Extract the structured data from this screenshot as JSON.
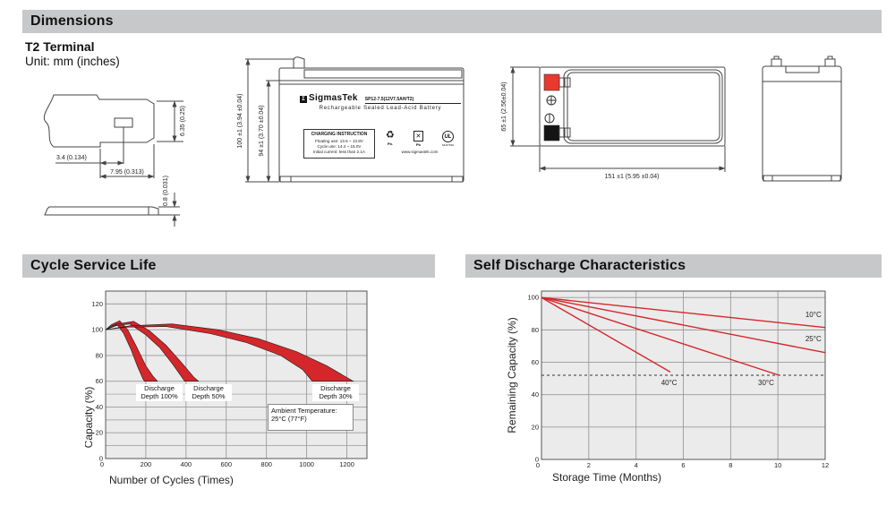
{
  "sections": {
    "dimensions": {
      "title": "Dimensions",
      "subtitle": "T2 Terminal",
      "unit_note": "Unit: mm (inches)"
    },
    "cycle_life": {
      "title": "Cycle Service Life"
    },
    "self_discharge": {
      "title": "Self Discharge Characteristics"
    }
  },
  "colors": {
    "header_bar": "#c7c8c9",
    "chart_plot_bg": "#ebebeb",
    "grid": "#9a9a9a",
    "plot_border": "#555555",
    "chart_red": "#d4272b",
    "terminal_red": "#e8392e",
    "terminal_black": "#141414",
    "drawing_stroke": "#444444"
  },
  "terminal_drawing": {
    "labels": {
      "hole_offset": "3.4 (0.134)",
      "tab_width": "7.95 (0.313)",
      "tab_height": "6.35 (0.25)",
      "thickness": "0.8 (0.031)"
    }
  },
  "front_view": {
    "dim_outer": "100 ±1 (3.94 ±0.04)",
    "dim_inner": "94 ±1 (3.70 ±0.04)",
    "label": {
      "logo_glyph": "Σ",
      "brand": "SigmasTek",
      "model": "SP12-7.5(12V7.5AH/T2)",
      "subtitle": "Rechargeable Sealed Lead-Acid Battery",
      "charging_title": "CHARGING INSTRUCTION",
      "charging_lines": [
        "Floating use: 13.5 ~ 13.8V",
        "Cycle use: 14.4 ~ 15.0V",
        "Initial current: less than 2.1A"
      ],
      "recycle_pb": "Pb.",
      "bin_pb": "Pb",
      "bin_x": "✕",
      "recycle_glyph": "♻",
      "ul_mark": "UL",
      "ul_code": "MH47629",
      "website": "www.sigmastek.com"
    }
  },
  "top_view": {
    "dim_height": "65 ±1 (2.56±0.04)",
    "dim_width": "151 ±1 (5.95 ±0.04)"
  },
  "chart_data": [
    {
      "type": "area",
      "title": "Cycle Service Life",
      "xlabel": "Number of Cycles (Times)",
      "ylabel": "Capacity (%)",
      "xlim": [
        0,
        1300
      ],
      "ylim": [
        0,
        130
      ],
      "x_ticks": [
        0,
        200,
        400,
        600,
        800,
        1000,
        1200
      ],
      "y_ticks": [
        0,
        20,
        40,
        60,
        80,
        100,
        120
      ],
      "y_minor": [
        10,
        30,
        50
      ],
      "grid": true,
      "legend_position": "none",
      "annotations": [
        {
          "lines": [
            "Discharge",
            "Depth 100%"
          ]
        },
        {
          "lines": [
            "Discharge",
            "Depth 50%"
          ]
        },
        {
          "lines": [
            "Discharge",
            "Depth 30%"
          ]
        },
        {
          "lines": [
            "Ambient Temperature:",
            "25°C (77°F)"
          ]
        }
      ],
      "bands": [
        {
          "name": "Discharge Depth 100%",
          "upper": [
            [
              0,
              100
            ],
            [
              30,
              104
            ],
            [
              70,
              107
            ],
            [
              110,
              100
            ],
            [
              150,
              88
            ],
            [
              200,
              72
            ],
            [
              235,
              64
            ],
            [
              258,
              60
            ]
          ],
          "lower": [
            [
              0,
              100
            ],
            [
              25,
              102.5
            ],
            [
              55,
              104.5
            ],
            [
              90,
              97
            ],
            [
              125,
              85
            ],
            [
              160,
              71
            ],
            [
              185,
              62
            ],
            [
              193,
              60
            ]
          ]
        },
        {
          "name": "Discharge Depth 50%",
          "upper": [
            [
              0,
              100
            ],
            [
              60,
              104.5
            ],
            [
              140,
              106.5
            ],
            [
              220,
              99
            ],
            [
              300,
              88
            ],
            [
              380,
              74
            ],
            [
              440,
              63
            ],
            [
              462,
              60
            ]
          ],
          "lower": [
            [
              0,
              100
            ],
            [
              50,
              103
            ],
            [
              120,
              104.5
            ],
            [
              200,
              96
            ],
            [
              270,
              86
            ],
            [
              330,
              74
            ],
            [
              380,
              63
            ],
            [
              393,
              60
            ]
          ]
        },
        {
          "name": "Discharge Depth 30%",
          "upper": [
            [
              0,
              100
            ],
            [
              120,
              103
            ],
            [
              330,
              104.5
            ],
            [
              560,
              100
            ],
            [
              760,
              93
            ],
            [
              950,
              83
            ],
            [
              1100,
              72
            ],
            [
              1232,
              60
            ]
          ],
          "lower": [
            [
              0,
              100
            ],
            [
              100,
              102
            ],
            [
              300,
              102.5
            ],
            [
              520,
              97
            ],
            [
              700,
              90
            ],
            [
              870,
              80
            ],
            [
              980,
              69
            ],
            [
              1028,
              60
            ]
          ]
        }
      ]
    },
    {
      "type": "line",
      "title": "Self Discharge Characteristics",
      "xlabel": "Storage Time (Months)",
      "ylabel": "Remaining Capacity (%)",
      "xlim": [
        0,
        12
      ],
      "ylim": [
        0,
        104
      ],
      "x_ticks": [
        0,
        2,
        4,
        6,
        8,
        10,
        12
      ],
      "y_ticks": [
        0,
        20,
        40,
        60,
        80,
        100
      ],
      "grid": true,
      "legend_position": "inline-labels",
      "dashed_line_y": 52,
      "series": [
        {
          "name": "10°C",
          "points": [
            [
              0,
              100
            ],
            [
              12,
              81.5
            ]
          ],
          "label_at": [
            11.5,
            88
          ]
        },
        {
          "name": "25°C",
          "points": [
            [
              0,
              100
            ],
            [
              12,
              66
            ]
          ],
          "label_at": [
            11.5,
            73
          ]
        },
        {
          "name": "30°C",
          "points": [
            [
              0,
              100
            ],
            [
              10.05,
              52
            ]
          ],
          "label_at": [
            9.5,
            46
          ]
        },
        {
          "name": "40°C",
          "points": [
            [
              0,
              100
            ],
            [
              5.45,
              54
            ]
          ],
          "label_at": [
            5.4,
            46
          ]
        }
      ]
    }
  ]
}
